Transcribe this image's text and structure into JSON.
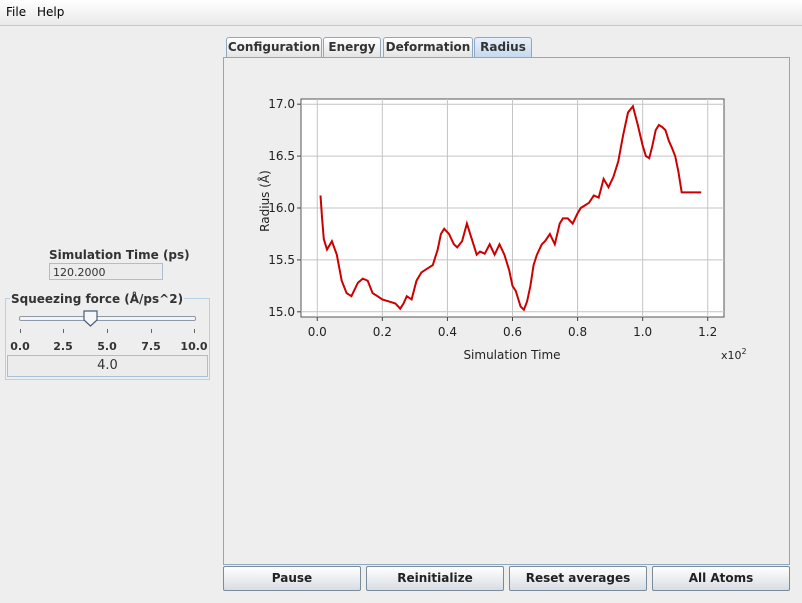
{
  "menu": {
    "file": "File",
    "help": "Help"
  },
  "sim_time": {
    "label": "Simulation Time (ps)",
    "value": "120.2000"
  },
  "force": {
    "title": "Squeezing force (Å/ps^2)",
    "ticks": [
      "0.0",
      "2.5",
      "5.0",
      "7.5",
      "10.0"
    ],
    "slider_value": 4.0,
    "value_text": "4.0"
  },
  "tabs": [
    "Configuration",
    "Energy",
    "Deformation",
    "Radius"
  ],
  "active_tab": "Radius",
  "buttons": {
    "pause": "Pause",
    "reinitialize": "Reinitialize",
    "reset": "Reset averages",
    "all_atoms": "All Atoms"
  },
  "chart_data": {
    "type": "line",
    "xlabel": "Simulation Time",
    "ylabel": "Radius (Å)",
    "x_multiplier": "x10",
    "x_multiplier_exp": "2",
    "xlim": [
      -0.05,
      1.25
    ],
    "ylim": [
      14.95,
      17.05
    ],
    "xticks": [
      "0.0",
      "0.2",
      "0.4",
      "0.6",
      "0.8",
      "1.0",
      "1.2"
    ],
    "yticks": [
      "15.0",
      "15.5",
      "16.0",
      "16.5",
      "17.0"
    ],
    "grid": true,
    "series": [
      {
        "color": "#cc0000",
        "x": [
          0.01,
          0.015,
          0.02,
          0.03,
          0.045,
          0.06,
          0.075,
          0.09,
          0.105,
          0.125,
          0.14,
          0.155,
          0.17,
          0.185,
          0.2,
          0.22,
          0.24,
          0.255,
          0.265,
          0.275,
          0.29,
          0.305,
          0.32,
          0.34,
          0.355,
          0.37,
          0.38,
          0.39,
          0.405,
          0.42,
          0.43,
          0.445,
          0.46,
          0.475,
          0.49,
          0.5,
          0.515,
          0.53,
          0.545,
          0.56,
          0.575,
          0.59,
          0.6,
          0.61,
          0.625,
          0.635,
          0.645,
          0.655,
          0.665,
          0.675,
          0.69,
          0.7,
          0.715,
          0.73,
          0.745,
          0.755,
          0.77,
          0.785,
          0.8,
          0.81,
          0.82,
          0.835,
          0.85,
          0.865,
          0.88,
          0.895,
          0.91,
          0.925,
          0.94,
          0.955,
          0.97,
          0.985,
          1.0,
          1.01,
          1.02,
          1.03,
          1.04,
          1.05,
          1.06,
          1.07,
          1.08,
          1.09,
          1.1,
          1.11,
          1.12,
          1.135,
          1.15,
          1.16,
          1.17,
          1.18
        ],
        "y": [
          16.12,
          15.9,
          15.7,
          15.6,
          15.68,
          15.55,
          15.3,
          15.18,
          15.15,
          15.28,
          15.32,
          15.3,
          15.18,
          15.15,
          15.12,
          15.1,
          15.08,
          15.03,
          15.08,
          15.15,
          15.12,
          15.3,
          15.38,
          15.42,
          15.45,
          15.6,
          15.75,
          15.8,
          15.75,
          15.65,
          15.62,
          15.68,
          15.85,
          15.7,
          15.55,
          15.58,
          15.56,
          15.65,
          15.55,
          15.65,
          15.55,
          15.4,
          15.25,
          15.2,
          15.05,
          15.02,
          15.1,
          15.25,
          15.45,
          15.55,
          15.65,
          15.68,
          15.75,
          15.65,
          15.85,
          15.9,
          15.9,
          15.85,
          15.95,
          16.0,
          16.02,
          16.05,
          16.12,
          16.1,
          16.28,
          16.2,
          16.3,
          16.45,
          16.7,
          16.92,
          16.98,
          16.8,
          16.6,
          16.5,
          16.48,
          16.6,
          16.75,
          16.8,
          16.78,
          16.75,
          16.65,
          16.58,
          16.5,
          16.35,
          16.15,
          16.15,
          16.15,
          16.15,
          16.15,
          16.15
        ]
      }
    ]
  }
}
